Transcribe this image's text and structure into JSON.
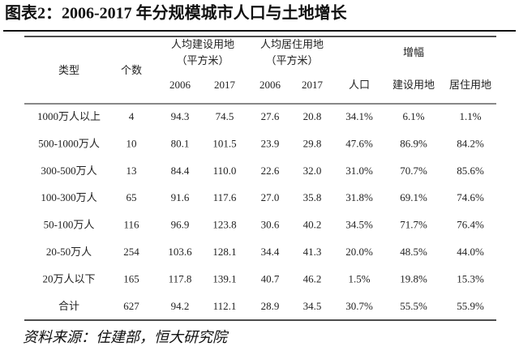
{
  "title": "图表2：2006-2017 年分规模城市人口与土地增长",
  "header": {
    "type": "类型",
    "count": "个数",
    "groups": [
      {
        "label_lines": [
          "人均建设用地",
          "（平方米）"
        ],
        "years": [
          "2006",
          "2017"
        ]
      },
      {
        "label_lines": [
          "人均居住用地",
          "（平方米）"
        ],
        "years": [
          "2006",
          "2017"
        ]
      }
    ],
    "growth": {
      "label": "增幅",
      "columns": [
        "人口",
        "建设用地",
        "居住用地"
      ]
    }
  },
  "table": {
    "rows": [
      [
        "1000万人以上",
        "4",
        "94.3",
        "74.5",
        "27.6",
        "20.8",
        "34.1%",
        "6.1%",
        "1.1%"
      ],
      [
        "500-1000万人",
        "10",
        "80.1",
        "101.5",
        "23.9",
        "29.8",
        "47.6%",
        "86.9%",
        "84.2%"
      ],
      [
        "300-500万人",
        "13",
        "84.4",
        "110.0",
        "22.6",
        "32.0",
        "31.0%",
        "70.7%",
        "85.6%"
      ],
      [
        "100-300万人",
        "65",
        "91.6",
        "117.6",
        "27.0",
        "35.8",
        "31.8%",
        "69.1%",
        "74.6%"
      ],
      [
        "50-100万人",
        "116",
        "96.9",
        "123.8",
        "30.6",
        "40.2",
        "34.5%",
        "71.7%",
        "76.4%"
      ],
      [
        "20-50万人",
        "254",
        "103.6",
        "128.1",
        "34.4",
        "41.3",
        "20.0%",
        "48.5%",
        "44.0%"
      ],
      [
        "20万人以下",
        "165",
        "117.8",
        "139.1",
        "40.7",
        "46.2",
        "1.5%",
        "19.8%",
        "15.3%"
      ],
      [
        "合计",
        "627",
        "94.2",
        "112.1",
        "28.9",
        "34.5",
        "30.7%",
        "55.5%",
        "55.9%"
      ]
    ]
  },
  "source": "资料来源：住建部，恒大研究院"
}
